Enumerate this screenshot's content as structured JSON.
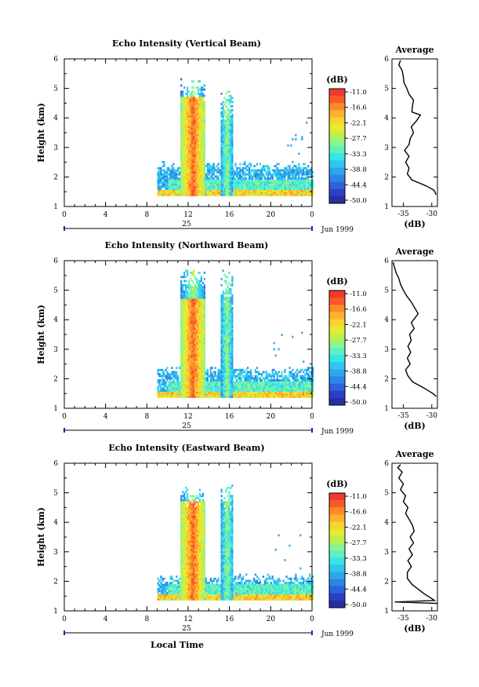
{
  "figure": {
    "date_label": "Jun 1999",
    "day_label": "25",
    "x_axis_label": "Local Time",
    "height_label": "Height (km)",
    "avg_title": "Average",
    "avg_unit": "(dB)",
    "colorbar_unit": "(dB)"
  },
  "colorscale": {
    "labels": [
      "-11.0",
      "-16.6",
      "-22.1",
      "-27.7",
      "-33.3",
      "-38.8",
      "-44.4",
      "-50.0"
    ],
    "colors": [
      "#f03a2d",
      "#fb5a28",
      "#fd8a28",
      "#fdb12c",
      "#f7d52e",
      "#e6ea30",
      "#bdf04a",
      "#8ef48a",
      "#5ff0c2",
      "#38e4e6",
      "#2fc6f0",
      "#2ea6ee",
      "#2c86e6",
      "#2c62da",
      "#2c3fc8",
      "#2a2ea0"
    ]
  },
  "chart_data": [
    {
      "type": "heatmap",
      "title": "Echo Intensity (Vertical Beam)",
      "ylabel": "Height (km)",
      "x_ticks": [
        "0",
        "4",
        "8",
        "12",
        "16",
        "20",
        "0"
      ],
      "y_ticks": [
        "1",
        "2",
        "3",
        "4",
        "5",
        "6"
      ],
      "xlim": [
        0,
        24
      ],
      "ylim": [
        1,
        6
      ],
      "data_start_hour": 9,
      "tops": {
        "clutter_top": 2.5,
        "main_top": 5.3,
        "second_top": 5.1
      },
      "average_profile": {
        "title": "Average",
        "xlabel": "(dB)",
        "x_ticks": [
          "-35",
          "-30"
        ],
        "xlim": [
          -37,
          -29
        ],
        "y_ticks": [
          "1",
          "2",
          "3",
          "4",
          "5",
          "6"
        ],
        "points": [
          [
            -29.2,
            1.4
          ],
          [
            -29.6,
            1.55
          ],
          [
            -31,
            1.7
          ],
          [
            -33.5,
            1.9
          ],
          [
            -34.3,
            2.1
          ],
          [
            -34,
            2.3
          ],
          [
            -34.6,
            2.5
          ],
          [
            -34,
            2.7
          ],
          [
            -34.8,
            2.9
          ],
          [
            -34,
            3.1
          ],
          [
            -33.8,
            3.3
          ],
          [
            -33.2,
            3.5
          ],
          [
            -33.6,
            3.7
          ],
          [
            -32.7,
            3.9
          ],
          [
            -32,
            4.1
          ],
          [
            -33.5,
            4.2
          ],
          [
            -33.4,
            4.4
          ],
          [
            -33.2,
            4.6
          ],
          [
            -34,
            4.8
          ],
          [
            -34.4,
            5
          ],
          [
            -34.9,
            5.2
          ],
          [
            -35,
            5.4
          ],
          [
            -35.2,
            5.6
          ],
          [
            -35.8,
            5.8
          ],
          [
            -35.5,
            5.95
          ]
        ]
      }
    },
    {
      "type": "heatmap",
      "title": "Echo Intensity (Northward Beam)",
      "ylabel": "Height (km)",
      "x_ticks": [
        "0",
        "4",
        "8",
        "12",
        "16",
        "20",
        "0"
      ],
      "y_ticks": [
        "1",
        "2",
        "3",
        "4",
        "5",
        "6"
      ],
      "xlim": [
        0,
        24
      ],
      "ylim": [
        1,
        6
      ],
      "data_start_hour": 9,
      "tops": {
        "clutter_top": 2.4,
        "main_top": 5.7,
        "second_top": 5.7
      },
      "average_profile": {
        "title": "Average",
        "xlabel": "(dB)",
        "x_ticks": [
          "-35",
          "-30"
        ],
        "xlim": [
          -37,
          -29
        ],
        "y_ticks": [
          "1",
          "2",
          "3",
          "4",
          "5",
          "6"
        ],
        "points": [
          [
            -29.2,
            1.4
          ],
          [
            -29.8,
            1.5
          ],
          [
            -31.5,
            1.7
          ],
          [
            -33.4,
            1.9
          ],
          [
            -34.2,
            2.1
          ],
          [
            -34.6,
            2.3
          ],
          [
            -33.8,
            2.5
          ],
          [
            -34.3,
            2.7
          ],
          [
            -33.7,
            2.9
          ],
          [
            -34.2,
            3.1
          ],
          [
            -33.6,
            3.3
          ],
          [
            -33.9,
            3.5
          ],
          [
            -33.1,
            3.7
          ],
          [
            -33.6,
            3.9
          ],
          [
            -32.4,
            4.2
          ],
          [
            -33,
            4.4
          ],
          [
            -33.6,
            4.6
          ],
          [
            -34.4,
            4.8
          ],
          [
            -35,
            5
          ],
          [
            -35.5,
            5.2
          ],
          [
            -35.8,
            5.4
          ],
          [
            -36.3,
            5.6
          ],
          [
            -36.6,
            5.8
          ],
          [
            -36.8,
            5.95
          ]
        ]
      }
    },
    {
      "type": "heatmap",
      "title": "Echo Intensity (Eastward Beam)",
      "ylabel": "Height (km)",
      "x_ticks": [
        "0",
        "4",
        "8",
        "12",
        "16",
        "20",
        "0"
      ],
      "y_ticks": [
        "1",
        "2",
        "3",
        "4",
        "5",
        "6"
      ],
      "xlim": [
        0,
        24
      ],
      "ylim": [
        1,
        6
      ],
      "data_start_hour": 9,
      "tops": {
        "clutter_top": 2.2,
        "main_top": 5.2,
        "second_top": 5.5
      },
      "average_profile": {
        "title": "Average",
        "xlabel": "(dB)",
        "x_ticks": [
          "-35",
          "-30"
        ],
        "xlim": [
          -37,
          -29
        ],
        "y_ticks": [
          "1",
          "2",
          "3",
          "4",
          "5",
          "6"
        ],
        "points": [
          [
            -29,
            1.25
          ],
          [
            -36.5,
            1.3
          ],
          [
            -29.5,
            1.35
          ],
          [
            -31.5,
            1.6
          ],
          [
            -33.5,
            1.9
          ],
          [
            -34.3,
            2.1
          ],
          [
            -34.3,
            2.3
          ],
          [
            -33.6,
            2.5
          ],
          [
            -34.2,
            2.7
          ],
          [
            -33.4,
            2.9
          ],
          [
            -34,
            3.1
          ],
          [
            -33.2,
            3.3
          ],
          [
            -33.8,
            3.5
          ],
          [
            -33.1,
            3.7
          ],
          [
            -33.4,
            3.9
          ],
          [
            -34,
            4.1
          ],
          [
            -34.6,
            4.3
          ],
          [
            -34.2,
            4.5
          ],
          [
            -35,
            4.7
          ],
          [
            -34.6,
            4.9
          ],
          [
            -35.5,
            5.1
          ],
          [
            -35,
            5.3
          ],
          [
            -35.8,
            5.5
          ],
          [
            -35.2,
            5.7
          ],
          [
            -36,
            5.85
          ],
          [
            -35.5,
            5.95
          ]
        ]
      }
    }
  ]
}
